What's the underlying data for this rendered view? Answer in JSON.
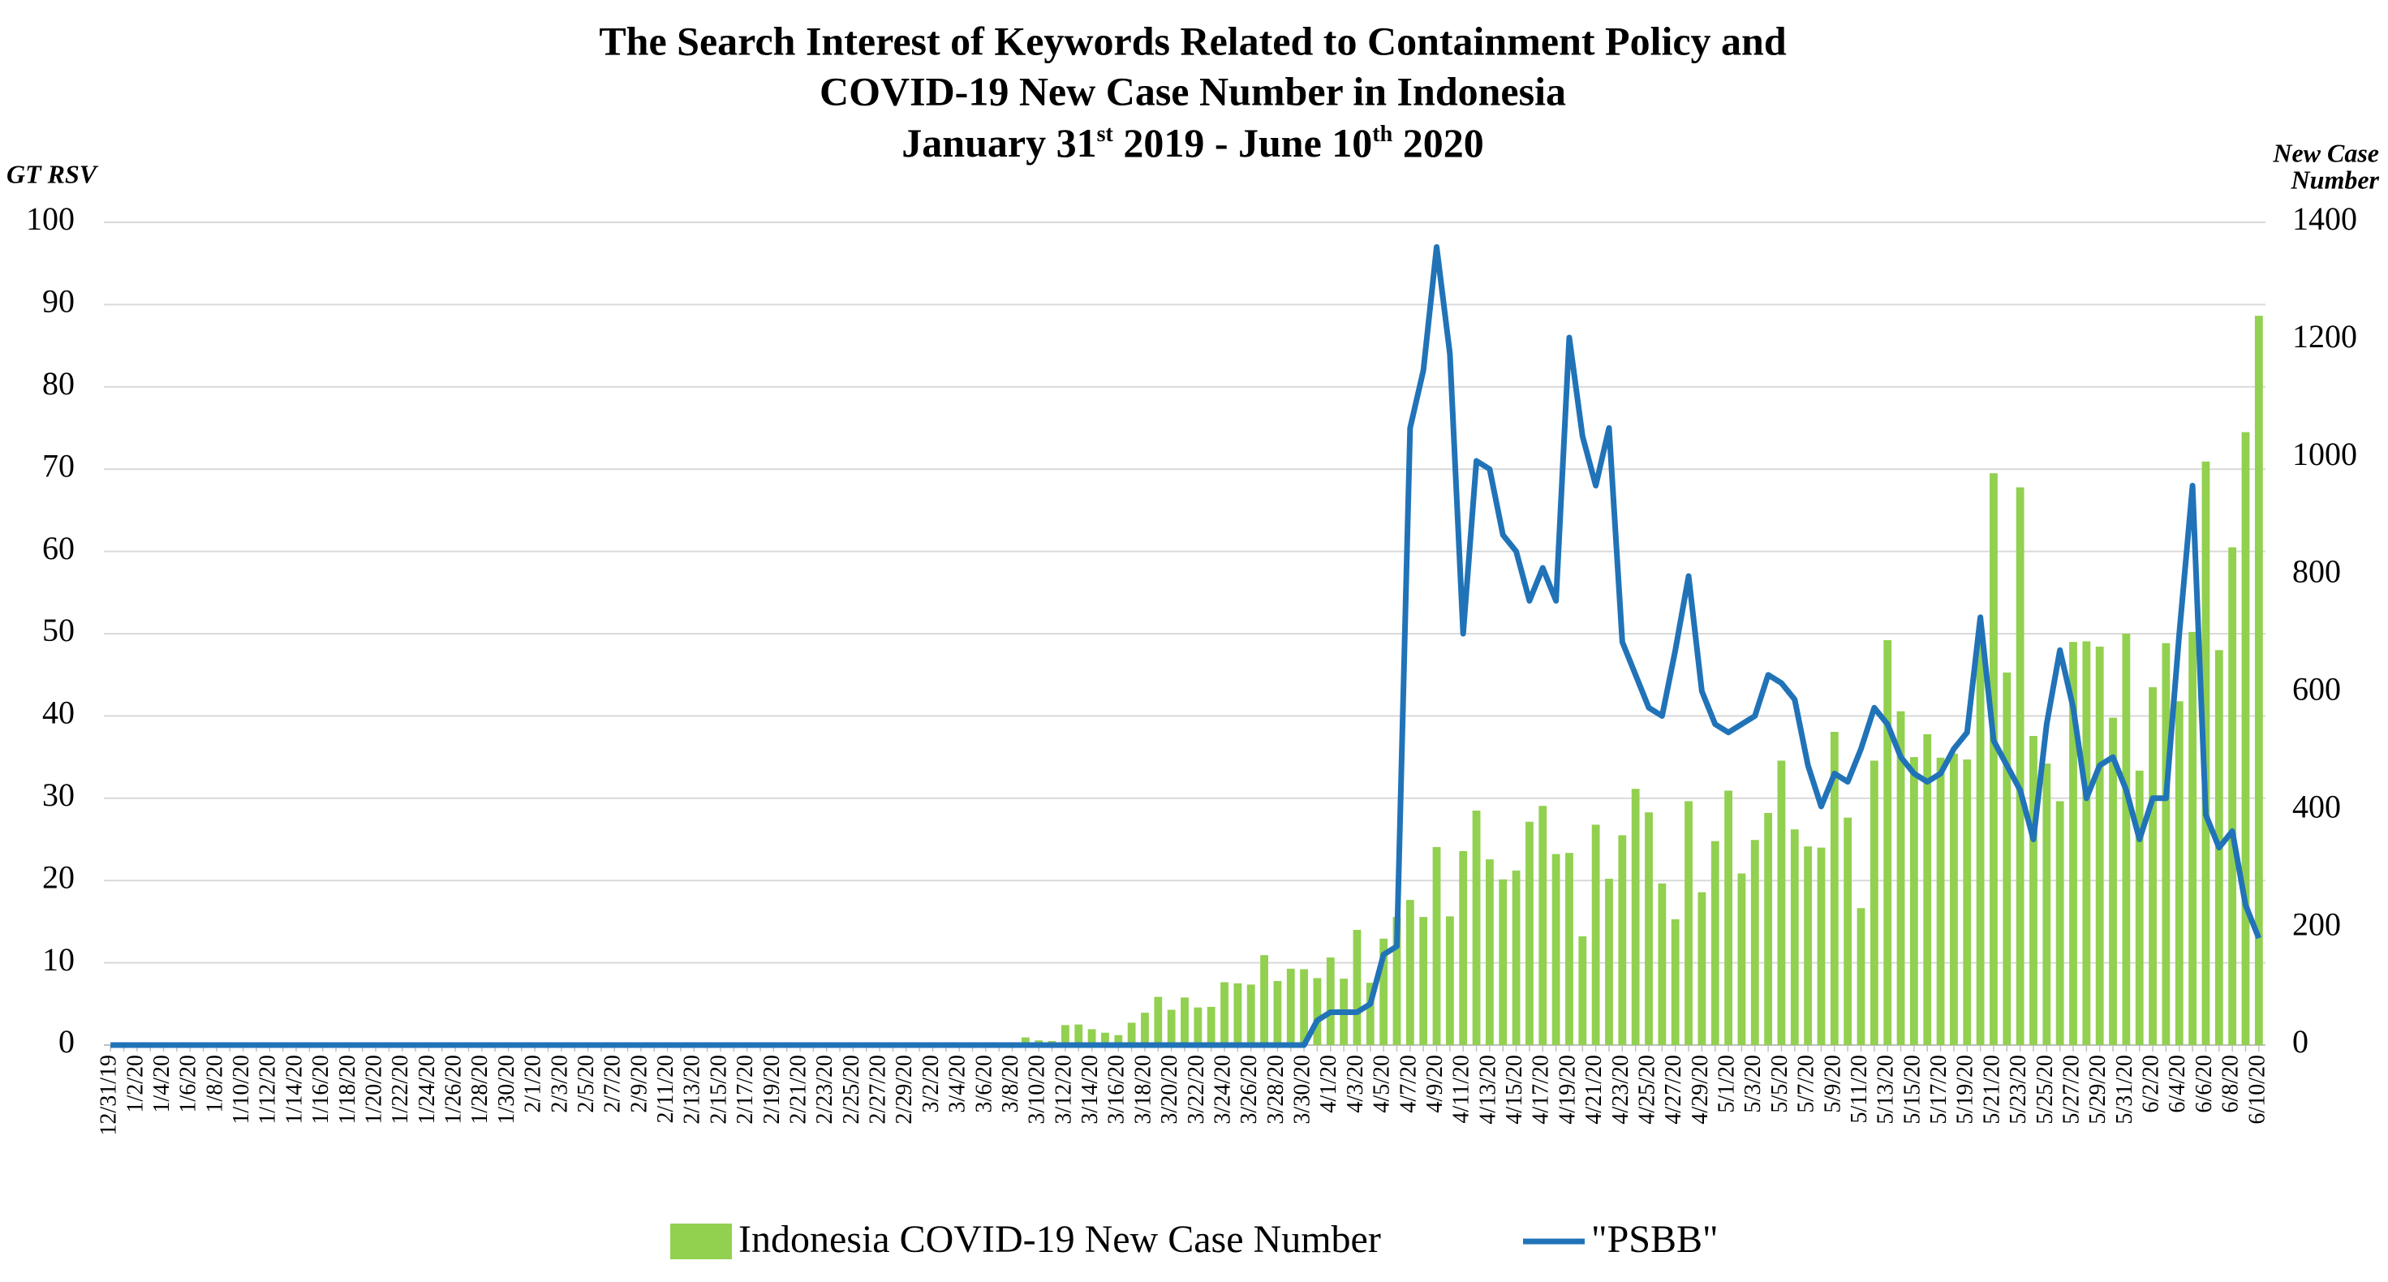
{
  "chart_data": {
    "type": "bar-line",
    "title": [
      "The Search Interest of Keywords Related to Containment Policy and",
      "COVID-19 New Case Number in Indonesia"
    ],
    "subtitle": [
      "January 31",
      "st",
      " 2019 - June 10",
      "th",
      " 2020"
    ],
    "ylabel": "GT RSV",
    "y2label": [
      "New Case",
      "Number"
    ],
    "categories": [
      "12/31/19",
      null,
      "1/2/20",
      null,
      "1/4/20",
      null,
      "1/6/20",
      null,
      "1/8/20",
      null,
      "1/10/20",
      null,
      "1/12/20",
      null,
      "1/14/20",
      null,
      "1/16/20",
      null,
      "1/18/20",
      null,
      "1/20/20",
      null,
      "1/22/20",
      null,
      "1/24/20",
      null,
      "1/26/20",
      null,
      "1/28/20",
      null,
      "1/30/20",
      null,
      "2/1/20",
      null,
      "2/3/20",
      null,
      "2/5/20",
      null,
      "2/7/20",
      null,
      "2/9/20",
      null,
      "2/11/20",
      null,
      "2/13/20",
      null,
      "2/15/20",
      null,
      "2/17/20",
      null,
      "2/19/20",
      null,
      "2/21/20",
      null,
      "2/23/20",
      null,
      "2/25/20",
      null,
      "2/27/20",
      null,
      "2/29/20",
      null,
      "3/2/20",
      null,
      "3/4/20",
      null,
      "3/6/20",
      null,
      "3/8/20",
      null,
      "3/10/20",
      null,
      "3/12/20",
      null,
      "3/14/20",
      null,
      "3/16/20",
      null,
      "3/18/20",
      null,
      "3/20/20",
      null,
      "3/22/20",
      null,
      "3/24/20",
      null,
      "3/26/20",
      null,
      "3/28/20",
      null,
      "3/30/20",
      null,
      "4/1/20",
      null,
      "4/3/20",
      null,
      "4/5/20",
      null,
      "4/7/20",
      null,
      "4/9/20",
      null,
      "4/11/20",
      null,
      "4/13/20",
      null,
      "4/15/20",
      null,
      "4/17/20",
      null,
      "4/19/20",
      null,
      "4/21/20",
      null,
      "4/23/20",
      null,
      "4/25/20",
      null,
      "4/27/20",
      null,
      "4/29/20",
      null,
      "5/1/20",
      null,
      "5/3/20",
      null,
      "5/5/20",
      null,
      "5/7/20",
      null,
      "5/9/20",
      null,
      "5/11/20",
      null,
      "5/13/20",
      null,
      "5/15/20",
      null,
      "5/17/20",
      null,
      "5/19/20",
      null,
      "5/21/20",
      null,
      "5/23/20",
      null,
      "5/25/20",
      null,
      "5/27/20",
      null,
      "5/29/20",
      null,
      "5/31/20",
      null,
      "6/2/20",
      null,
      "6/4/20",
      null,
      "6/6/20",
      null,
      "6/8/20",
      null,
      "6/10/20"
    ],
    "series": [
      {
        "name": "Indonesia COVID-19 New Case Number",
        "type": "bar",
        "axis": "y2",
        "color": "#92d050",
        "values": [
          0,
          0,
          0,
          0,
          0,
          0,
          0,
          0,
          0,
          0,
          0,
          0,
          0,
          0,
          0,
          0,
          0,
          0,
          0,
          0,
          0,
          0,
          0,
          0,
          0,
          0,
          0,
          0,
          0,
          0,
          0,
          0,
          0,
          0,
          0,
          0,
          0,
          0,
          0,
          0,
          0,
          0,
          0,
          0,
          0,
          0,
          0,
          0,
          0,
          0,
          0,
          0,
          0,
          0,
          0,
          0,
          0,
          0,
          0,
          0,
          0,
          0,
          2,
          0,
          0,
          0,
          2,
          0,
          2,
          13,
          8,
          7,
          34,
          35,
          27,
          21,
          17,
          38,
          55,
          82,
          60,
          81,
          64,
          65,
          107,
          105,
          103,
          153,
          109,
          130,
          129,
          114,
          149,
          113,
          196,
          106,
          181,
          218,
          247,
          218,
          337,
          219,
          330,
          399,
          316,
          282,
          297,
          380,
          407,
          325,
          327,
          185,
          375,
          283,
          357,
          436,
          396,
          275,
          214,
          415,
          260,
          347,
          433,
          292,
          349,
          395,
          484,
          367,
          338,
          336,
          533,
          387,
          233,
          484,
          689,
          568,
          490,
          529,
          489,
          496,
          486,
          693,
          973,
          634,
          949,
          526,
          479,
          415,
          686,
          687,
          678,
          557,
          700,
          467,
          609,
          684,
          585,
          703,
          993,
          672,
          847,
          1043,
          1241
        ]
      },
      {
        "name": "\"PSBB\"",
        "type": "line",
        "axis": "y",
        "color": "#2173b8",
        "values": [
          0,
          0,
          0,
          0,
          0,
          0,
          0,
          0,
          0,
          0,
          0,
          0,
          0,
          0,
          0,
          0,
          0,
          0,
          0,
          0,
          0,
          0,
          0,
          0,
          0,
          0,
          0,
          0,
          0,
          0,
          0,
          0,
          0,
          0,
          0,
          0,
          0,
          0,
          0,
          0,
          0,
          0,
          0,
          0,
          0,
          0,
          0,
          0,
          0,
          0,
          0,
          0,
          0,
          0,
          0,
          0,
          0,
          0,
          0,
          0,
          0,
          0,
          0,
          0,
          0,
          0,
          0,
          0,
          0,
          0,
          0,
          0,
          0,
          0,
          0,
          0,
          0,
          0,
          0,
          0,
          0,
          0,
          0,
          0,
          0,
          0,
          0,
          0,
          0,
          0,
          0,
          3,
          4,
          4,
          4,
          5,
          11,
          12,
          75,
          82,
          97,
          84,
          50,
          71,
          70,
          62,
          60,
          54,
          58,
          54,
          86,
          74,
          68,
          75,
          49,
          45,
          41,
          40,
          48,
          57,
          43,
          39,
          38,
          39,
          40,
          45,
          44,
          42,
          34,
          29,
          33,
          32,
          36,
          41,
          39,
          35,
          33,
          32,
          33,
          36,
          38,
          52,
          37,
          34,
          31,
          25,
          39,
          48,
          41,
          30,
          34,
          35,
          31,
          25,
          30,
          30,
          50,
          68,
          28,
          24,
          26,
          17,
          13
        ]
      }
    ],
    "ylim": [
      0,
      100
    ],
    "yticks": [
      0,
      10,
      20,
      30,
      40,
      50,
      60,
      70,
      80,
      90,
      100
    ],
    "y2lim": [
      0,
      1400
    ],
    "y2ticks": [
      0,
      200,
      400,
      600,
      800,
      1000,
      1200,
      1400
    ],
    "grid": true,
    "legend": "bottom"
  }
}
